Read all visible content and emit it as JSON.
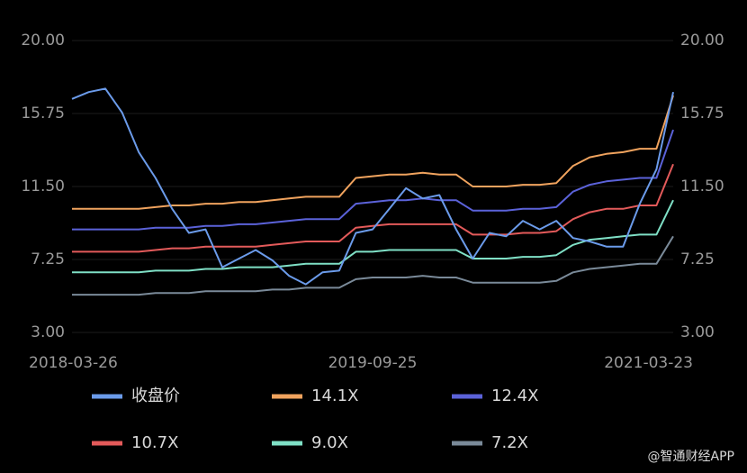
{
  "chart_data": {
    "type": "line",
    "categories": [
      "2018-03-26",
      null,
      null,
      null,
      null,
      null,
      null,
      null,
      null,
      null,
      null,
      null,
      null,
      null,
      null,
      null,
      null,
      null,
      "2019-09-25",
      null,
      null,
      null,
      null,
      null,
      null,
      null,
      null,
      null,
      null,
      null,
      null,
      null,
      null,
      null,
      null,
      null,
      "2021-03-23"
    ],
    "series": [
      {
        "name": "收盘价",
        "color": "#6b9bea",
        "values": [
          16.6,
          17.0,
          17.2,
          15.8,
          13.5,
          12.0,
          10.2,
          8.8,
          9.0,
          6.8,
          7.3,
          7.8,
          7.2,
          6.3,
          5.8,
          6.5,
          6.6,
          8.8,
          9.0,
          10.2,
          11.4,
          10.8,
          11.0,
          9.0,
          7.3,
          8.8,
          8.6,
          9.5,
          9.0,
          9.5,
          8.5,
          8.3,
          8.0,
          8.0,
          10.5,
          12.5,
          17.0
        ]
      },
      {
        "name": "14.1X",
        "color": "#f0a35e",
        "values": [
          10.2,
          10.2,
          10.2,
          10.2,
          10.2,
          10.3,
          10.4,
          10.4,
          10.5,
          10.5,
          10.6,
          10.6,
          10.7,
          10.8,
          10.9,
          10.9,
          10.9,
          12.0,
          12.1,
          12.2,
          12.2,
          12.3,
          12.2,
          12.2,
          11.5,
          11.5,
          11.5,
          11.6,
          11.6,
          11.7,
          12.7,
          13.2,
          13.4,
          13.5,
          13.7,
          13.7,
          16.8
        ]
      },
      {
        "name": "12.4X",
        "color": "#5b62d9",
        "values": [
          9.0,
          9.0,
          9.0,
          9.0,
          9.0,
          9.1,
          9.1,
          9.1,
          9.2,
          9.2,
          9.3,
          9.3,
          9.4,
          9.5,
          9.6,
          9.6,
          9.6,
          10.5,
          10.6,
          10.7,
          10.7,
          10.8,
          10.7,
          10.7,
          10.1,
          10.1,
          10.1,
          10.2,
          10.2,
          10.3,
          11.2,
          11.6,
          11.8,
          11.9,
          12.0,
          12.0,
          14.8
        ]
      },
      {
        "name": "10.7X",
        "color": "#e35a5a",
        "values": [
          7.7,
          7.7,
          7.7,
          7.7,
          7.7,
          7.8,
          7.9,
          7.9,
          8.0,
          8.0,
          8.0,
          8.0,
          8.1,
          8.2,
          8.3,
          8.3,
          8.3,
          9.1,
          9.2,
          9.3,
          9.3,
          9.3,
          9.3,
          9.3,
          8.7,
          8.7,
          8.7,
          8.8,
          8.8,
          8.9,
          9.6,
          10.0,
          10.2,
          10.2,
          10.4,
          10.4,
          12.8
        ]
      },
      {
        "name": "9.0X",
        "color": "#7fe0c6",
        "values": [
          6.5,
          6.5,
          6.5,
          6.5,
          6.5,
          6.6,
          6.6,
          6.6,
          6.7,
          6.7,
          6.8,
          6.8,
          6.8,
          6.9,
          7.0,
          7.0,
          7.0,
          7.7,
          7.7,
          7.8,
          7.8,
          7.8,
          7.8,
          7.8,
          7.3,
          7.3,
          7.3,
          7.4,
          7.4,
          7.5,
          8.1,
          8.4,
          8.5,
          8.6,
          8.7,
          8.7,
          10.7
        ]
      },
      {
        "name": "7.2X",
        "color": "#7a8a99",
        "values": [
          5.2,
          5.2,
          5.2,
          5.2,
          5.2,
          5.3,
          5.3,
          5.3,
          5.4,
          5.4,
          5.4,
          5.4,
          5.5,
          5.5,
          5.6,
          5.6,
          5.6,
          6.1,
          6.2,
          6.2,
          6.2,
          6.3,
          6.2,
          6.2,
          5.9,
          5.9,
          5.9,
          5.9,
          5.9,
          6.0,
          6.5,
          6.7,
          6.8,
          6.9,
          7.0,
          7.0,
          8.6
        ]
      }
    ],
    "ylim": [
      3,
      20
    ],
    "yticks": [
      {
        "value": 3,
        "label": "3.00"
      },
      {
        "value": 7.25,
        "label": "7.25"
      },
      {
        "value": 11.5,
        "label": "11.50"
      },
      {
        "value": 15.75,
        "label": "15.75"
      },
      {
        "value": 20,
        "label": "20.00"
      }
    ],
    "y2lim": [
      3,
      20
    ],
    "y2ticks": [
      {
        "value": 3,
        "label": "3.00"
      },
      {
        "value": 7.25,
        "label": "7.25"
      },
      {
        "value": 11.5,
        "label": "11.50"
      },
      {
        "value": 15.75,
        "label": "15.75"
      },
      {
        "value": 20,
        "label": "20.00"
      }
    ],
    "grid": true,
    "legend": "bottom",
    "watermark": "@智通财经APP"
  }
}
